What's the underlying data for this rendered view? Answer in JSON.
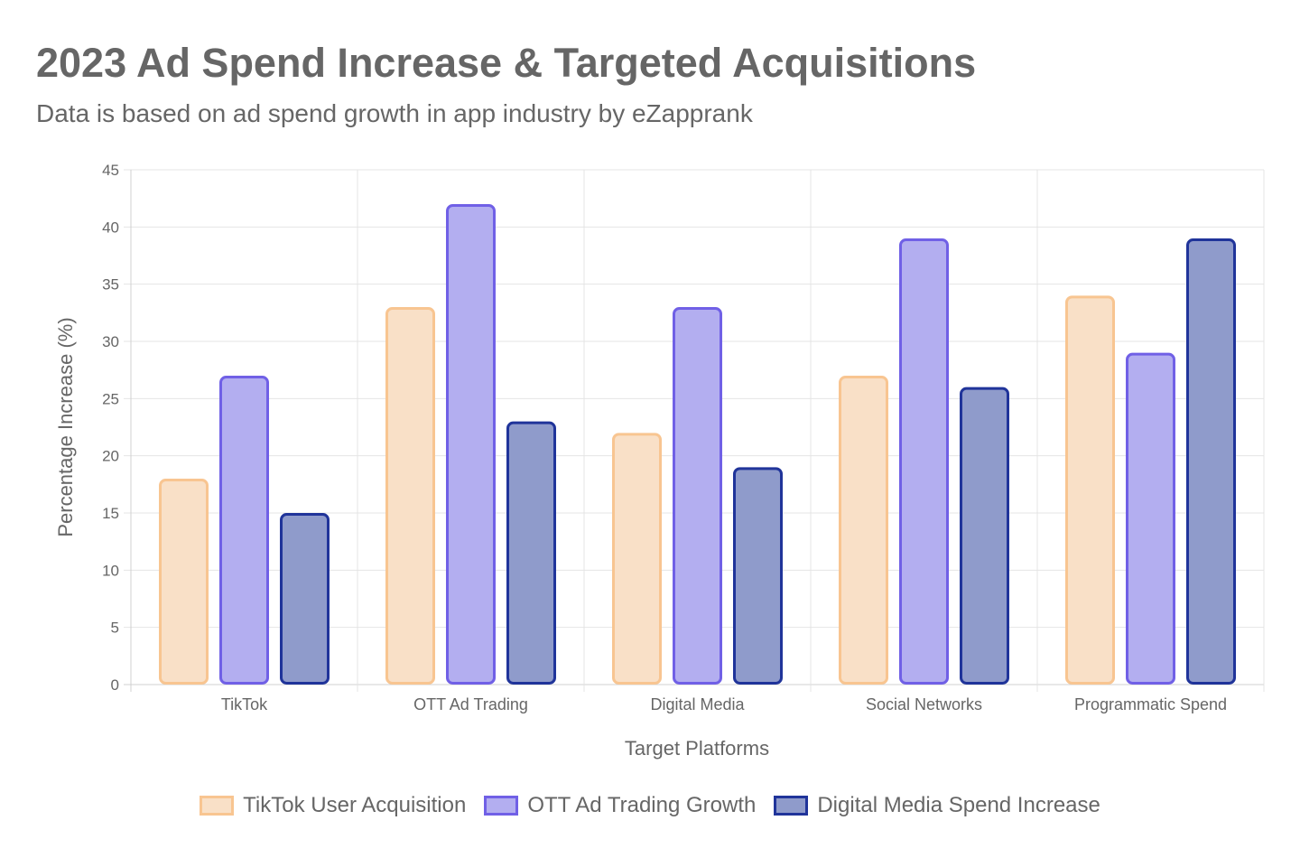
{
  "chart_data": {
    "type": "bar",
    "title": "2023 Ad Spend Increase & Targeted Acquisitions",
    "subtitle": "Data is based on ad spend growth in app industry by eZapprank",
    "xlabel": "Target Platforms",
    "ylabel": "Percentage Increase (%)",
    "ylim": [
      0,
      45
    ],
    "yticks": [
      0,
      5,
      10,
      15,
      20,
      25,
      30,
      35,
      40,
      45
    ],
    "grid": true,
    "legend_position": "bottom",
    "categories": [
      "TikTok",
      "OTT Ad Trading",
      "Digital Media",
      "Social Networks",
      "Programmatic Spend"
    ],
    "series": [
      {
        "name": "TikTok User Acquisition",
        "values": [
          18,
          33,
          22,
          27,
          34
        ],
        "fill": "#f9e0c7",
        "border": "#f8c591"
      },
      {
        "name": "OTT Ad Trading Growth",
        "values": [
          27,
          42,
          33,
          39,
          29
        ],
        "fill": "#b3aef0",
        "border": "#7060e6"
      },
      {
        "name": "Digital Media Spend Increase",
        "values": [
          15,
          23,
          19,
          26,
          39
        ],
        "fill": "#8f9bcb",
        "border": "#20349a"
      }
    ]
  }
}
